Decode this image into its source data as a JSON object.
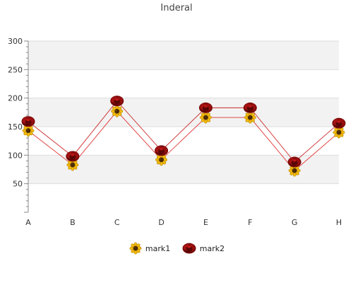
{
  "chart_data": {
    "type": "line",
    "title": "Inderal",
    "xlabel": "",
    "ylabel": "",
    "categories": [
      "A",
      "B",
      "C",
      "D",
      "E",
      "F",
      "G",
      "H"
    ],
    "ylim": [
      0,
      300
    ],
    "yticks": [
      50,
      100,
      150,
      200,
      250,
      300
    ],
    "grid": true,
    "legend_position": "bottom",
    "series": [
      {
        "name": "mark1",
        "values": [
          143,
          83,
          177,
          92,
          166,
          166,
          73,
          140
        ],
        "color": "#e03030",
        "marker": "sunflower-icon"
      },
      {
        "name": "mark2",
        "values": [
          159,
          98,
          195,
          108,
          183,
          183,
          88,
          156
        ],
        "color": "#cc2b2b",
        "marker": "rose-icon"
      }
    ]
  }
}
